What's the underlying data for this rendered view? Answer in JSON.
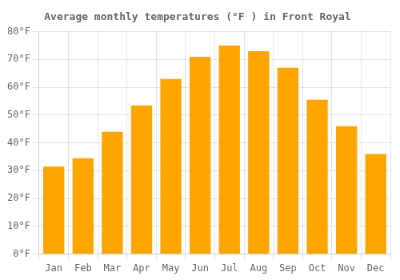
{
  "chart_data": {
    "type": "bar",
    "title": "Average monthly temperatures (°F ) in Front Royal",
    "categories": [
      "Jan",
      "Feb",
      "Mar",
      "Apr",
      "May",
      "Jun",
      "Jul",
      "Aug",
      "Sep",
      "Oct",
      "Nov",
      "Dec"
    ],
    "values": [
      31.5,
      34.5,
      44,
      53.5,
      63,
      71,
      75,
      73,
      67,
      55.5,
      46,
      36
    ],
    "color": "#FFA500",
    "ylim": [
      0,
      80
    ],
    "yticks": [
      {
        "value": 0,
        "label": "0°F"
      },
      {
        "value": 10,
        "label": "10°F"
      },
      {
        "value": 20,
        "label": "20°F"
      },
      {
        "value": 30,
        "label": "30°F"
      },
      {
        "value": 40,
        "label": "40°F"
      },
      {
        "value": 50,
        "label": "50°F"
      },
      {
        "value": 60,
        "label": "60°F"
      },
      {
        "value": 70,
        "label": "70°F"
      },
      {
        "value": 80,
        "label": "80°F"
      }
    ],
    "grid": true
  }
}
